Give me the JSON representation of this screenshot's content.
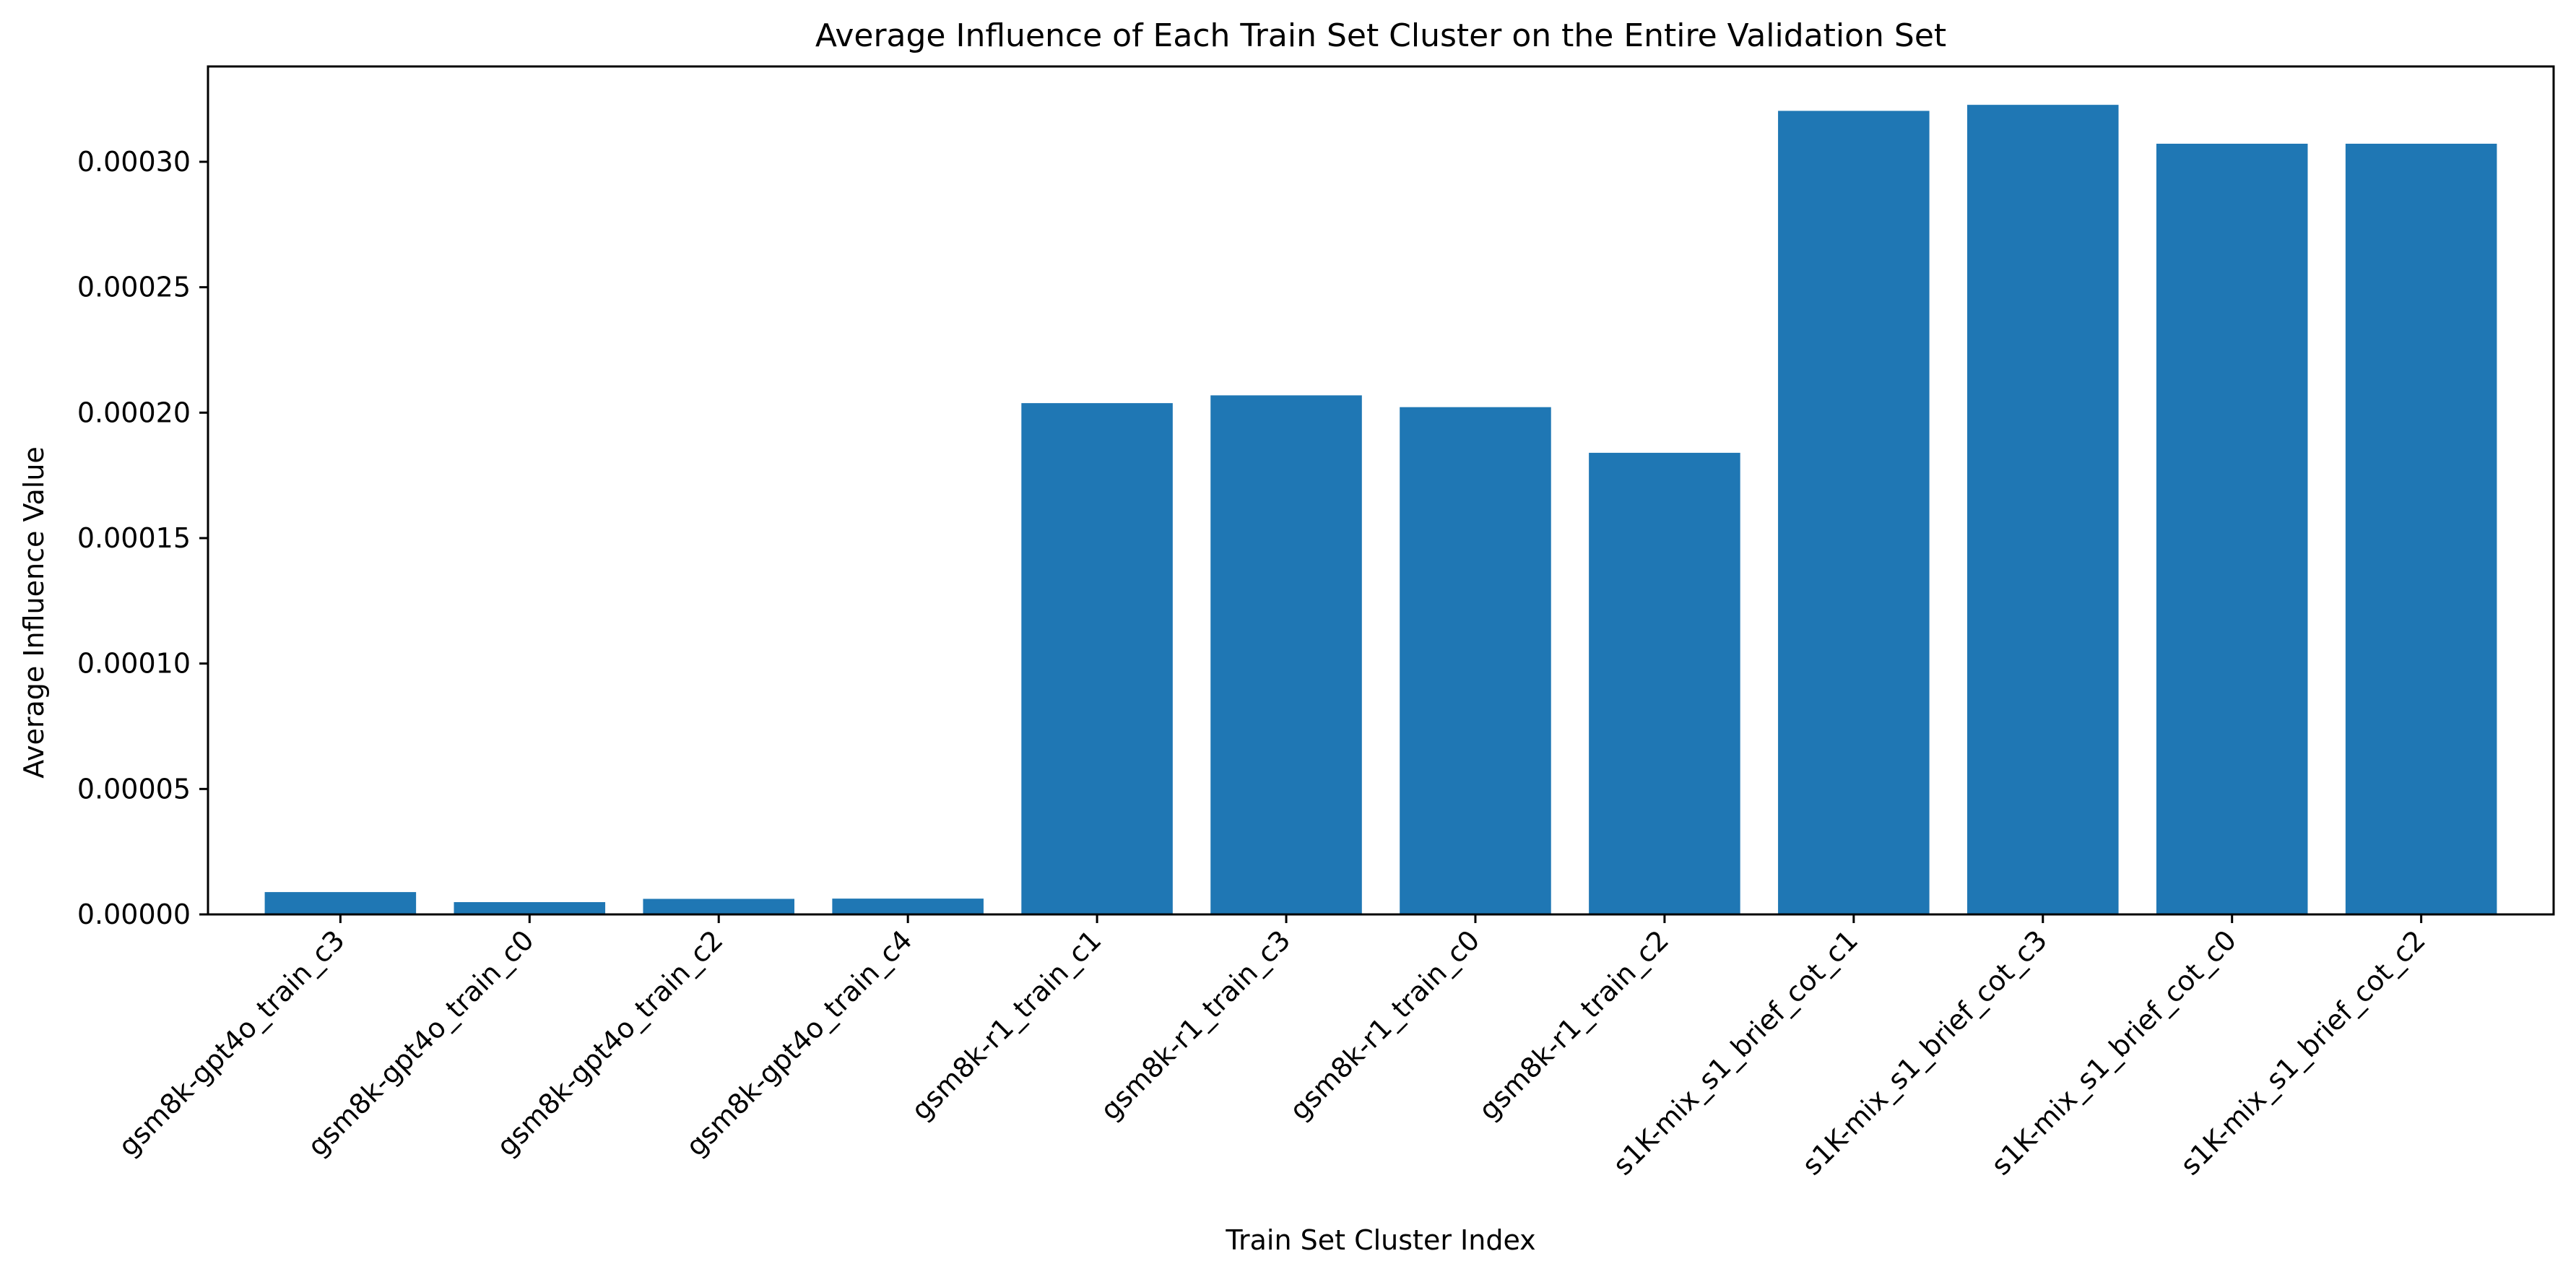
{
  "chart_data": {
    "type": "bar",
    "title": "Average Influence of Each Train Set Cluster on the Entire Validation Set",
    "xlabel": "Train Set Cluster Index",
    "ylabel": "Average Influence Value",
    "categories": [
      "gsm8k-gpt4o_train_c3",
      "gsm8k-gpt4o_train_c0",
      "gsm8k-gpt4o_train_c2",
      "gsm8k-gpt4o_train_c4",
      "gsm8k-r1_train_c1",
      "gsm8k-r1_train_c3",
      "gsm8k-r1_train_c0",
      "gsm8k-r1_train_c2",
      "s1K-mix_s1_brief_cot_c1",
      "s1K-mix_s1_brief_cot_c3",
      "s1K-mix_s1_brief_cot_c0",
      "s1K-mix_s1_brief_cot_c2"
    ],
    "values": [
      8.9e-06,
      4.9e-06,
      6.2e-06,
      6.3e-06,
      0.0002038,
      0.0002069,
      0.0002022,
      0.000184,
      0.0003203,
      0.0003227,
      0.0003072,
      0.0003072
    ],
    "ylim": [
      0,
      0.000338
    ],
    "yticks": [
      0,
      5e-05,
      0.0001,
      0.00015,
      0.0002,
      0.00025,
      0.0003
    ],
    "ytick_labels": [
      "0.00000",
      "0.00005",
      "0.00010",
      "0.00015",
      "0.00020",
      "0.00025",
      "0.00030"
    ],
    "bar_color": "#1f77b4",
    "grid": false,
    "legend": "none"
  }
}
